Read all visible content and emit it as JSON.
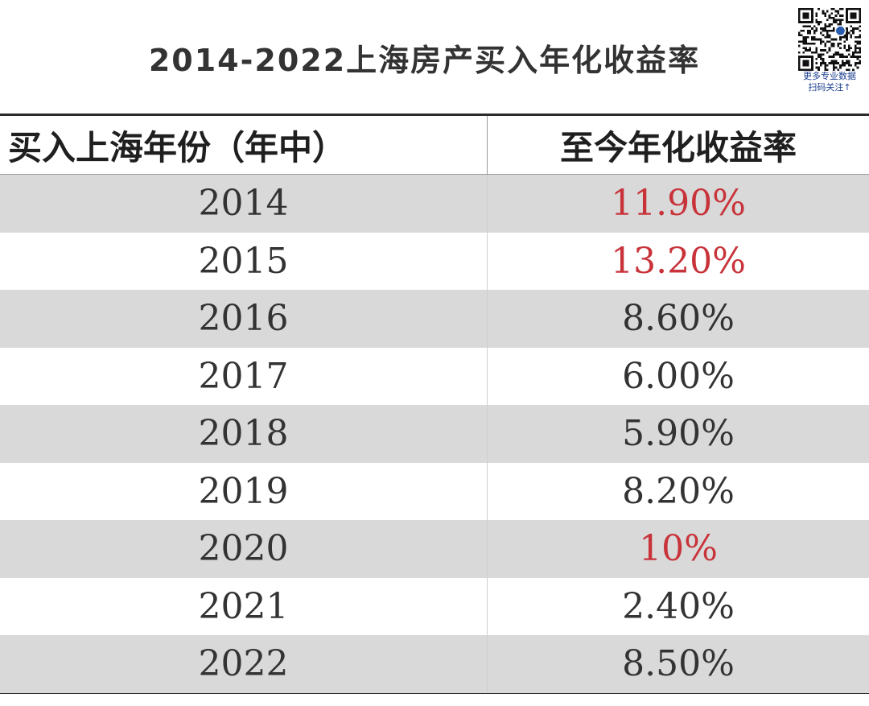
{
  "title": "2014-2022上海房产买入年化收益率",
  "qr": {
    "caption_line1": "更多专业数据",
    "caption_line2": "扫码关注↑",
    "icon": "qr-code-icon"
  },
  "colors": {
    "highlight_red": "#c8333a",
    "row_shade": "#d9d9d9",
    "text": "#333333"
  },
  "chart_data": {
    "type": "table",
    "title": "2014-2022上海房产买入年化收益率",
    "columns": [
      "买入上海年份（年中）",
      "至今年化收益率"
    ],
    "rows": [
      {
        "year": "2014",
        "return": "11.90%",
        "highlight": true
      },
      {
        "year": "2015",
        "return": "13.20%",
        "highlight": true
      },
      {
        "year": "2016",
        "return": "8.60%",
        "highlight": false
      },
      {
        "year": "2017",
        "return": "6.00%",
        "highlight": false
      },
      {
        "year": "2018",
        "return": "5.90%",
        "highlight": false
      },
      {
        "year": "2019",
        "return": "8.20%",
        "highlight": false
      },
      {
        "year": "2020",
        "return": "10%",
        "highlight": true
      },
      {
        "year": "2021",
        "return": "2.40%",
        "highlight": false
      },
      {
        "year": "2022",
        "return": "8.50%",
        "highlight": false
      }
    ]
  }
}
